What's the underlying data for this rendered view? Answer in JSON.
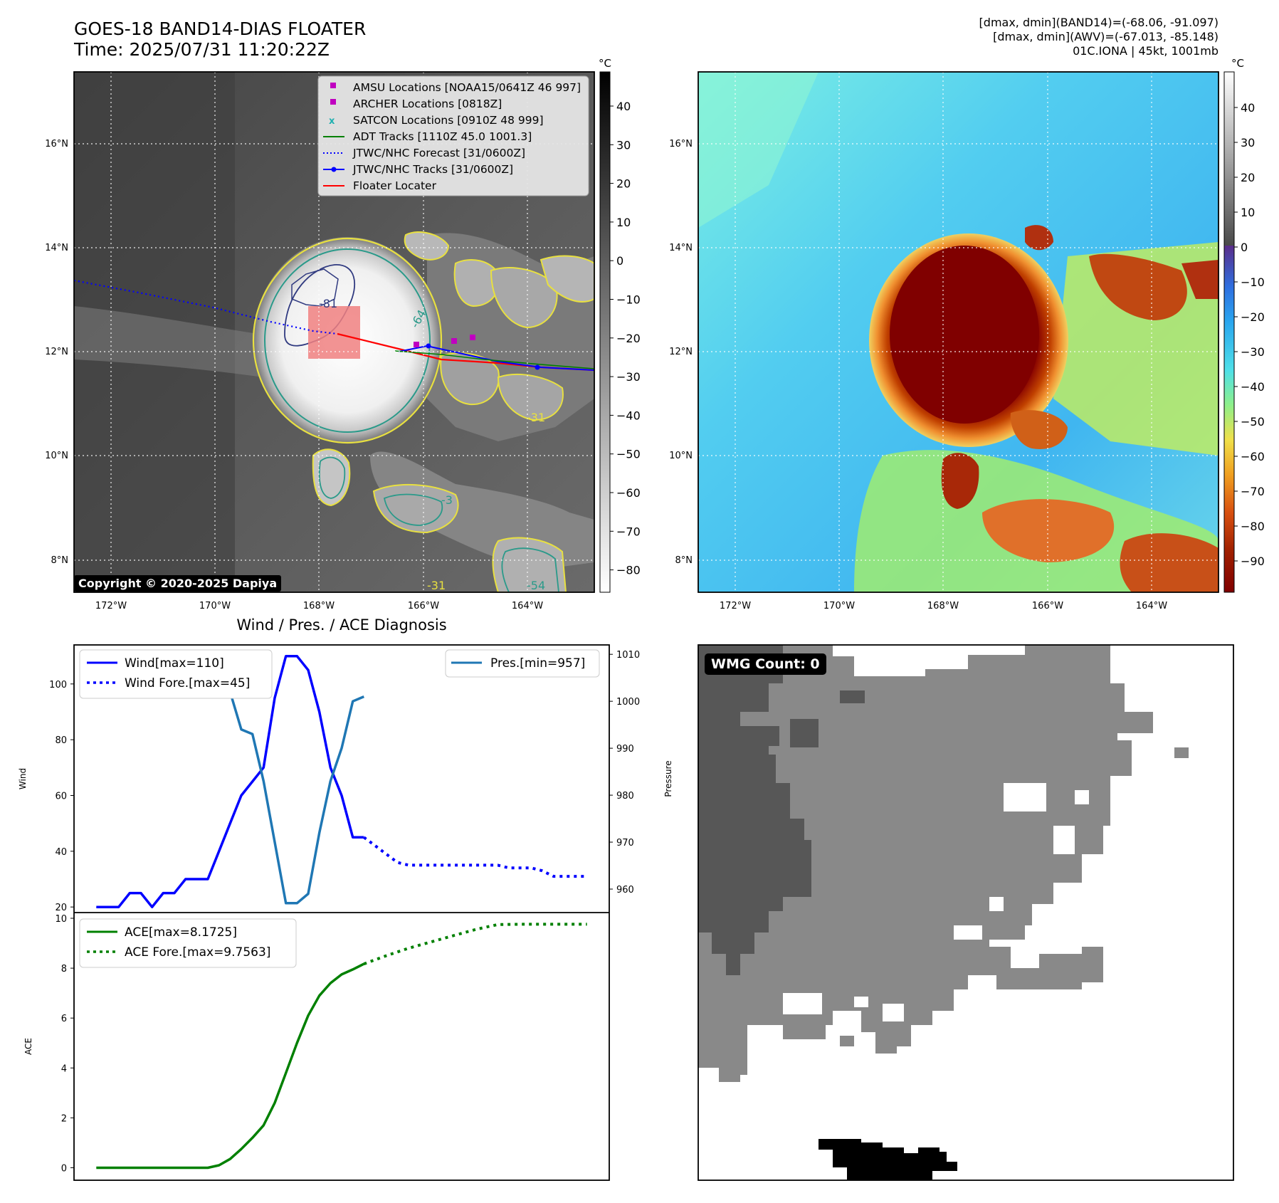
{
  "header": {
    "title_line1": "GOES-18 BAND14-DIAS FLOATER",
    "title_line2": "Time: 2025/07/31 11:20:22Z",
    "info_line1": "[dmax, dmin](BAND14)=(-68.06, -91.097)",
    "info_line2": "[dmax, dmin](AWV)=(-67.013, -85.148)",
    "info_line3": "01C.IONA | 45kt, 1001mb"
  },
  "map": {
    "lat_labels": [
      "16°N",
      "14°N",
      "12°N",
      "10°N",
      "8°N"
    ],
    "lon_labels": [
      "172°W",
      "170°W",
      "168°W",
      "166°W",
      "164°W"
    ],
    "copyright": "Copyright © 2020-2025 Dapiya",
    "legend": [
      {
        "label": "AMSU Locations [NOAA15/0641Z 46 997]",
        "color": "#c000c0",
        "marker": "square"
      },
      {
        "label": "ARCHER Locations [0818Z]",
        "color": "#c000c0",
        "marker": "square"
      },
      {
        "label": "SATCON Locations [0910Z 48 999]",
        "color": "#20b0b0",
        "marker": "x"
      },
      {
        "label": "ADT Tracks [1110Z 45.0 1001.3]",
        "color": "#008000",
        "marker": "line"
      },
      {
        "label": "JTWC/NHC Forecast [31/0600Z]",
        "color": "#0000ff",
        "marker": "dotted"
      },
      {
        "label": "JTWC/NHC Tracks [31/0600Z]",
        "color": "#0000ff",
        "marker": "line-dot"
      },
      {
        "label": "Floater Locater",
        "color": "#ff0000",
        "marker": "line"
      }
    ],
    "contour_labels": [
      "-81",
      "-64",
      "-31",
      "-54",
      "-31",
      "-3"
    ],
    "colorbar_gray": {
      "unit": "°C",
      "ticks": [
        "40",
        "30",
        "20",
        "10",
        "0",
        "−10",
        "−20",
        "−30",
        "−40",
        "−50",
        "−60",
        "−70",
        "−80"
      ]
    },
    "colorbar_color": {
      "unit": "°C",
      "ticks": [
        "40",
        "30",
        "20",
        "10",
        "0",
        "−10",
        "−20",
        "−30",
        "−40",
        "−50",
        "−60",
        "−70",
        "−80",
        "−90"
      ]
    }
  },
  "chart_data": [
    {
      "type": "line",
      "title": "Wind / Pres. / ACE Diagnosis",
      "ylabel": "Wind",
      "ylabel_right": "Pressure",
      "ylim": [
        18,
        114
      ],
      "ylim_right": [
        955,
        1012
      ],
      "yticks": [
        20,
        40,
        60,
        80,
        100
      ],
      "yticks_right": [
        960,
        970,
        980,
        990,
        1000,
        1010
      ],
      "grid": false,
      "series": [
        {
          "name": "Wind[max=110]",
          "style": "solid",
          "color": "#0000ff",
          "x": [
            0,
            1,
            2,
            3,
            4,
            5,
            6,
            7,
            8,
            9,
            10,
            11,
            12,
            13,
            14,
            15,
            16,
            17,
            18,
            19,
            20,
            21,
            22,
            23,
            24,
            25,
            26
          ],
          "values": [
            20,
            20,
            20,
            25,
            25,
            20,
            25,
            25,
            30,
            30,
            30,
            40,
            50,
            60,
            65,
            70,
            95,
            110,
            110,
            105,
            90,
            70,
            60,
            45,
            45,
            null,
            null
          ]
        },
        {
          "name": "Wind Fore.[max=45]",
          "style": "dotted",
          "color": "#0000ff",
          "x": [
            24,
            25,
            26,
            27,
            28,
            29,
            30,
            31,
            32,
            33,
            34,
            35,
            36,
            37,
            38,
            39,
            40,
            41,
            42,
            43,
            44
          ],
          "values": [
            45,
            42,
            39,
            36,
            35,
            35,
            35,
            35,
            35,
            35,
            35,
            35,
            35,
            34,
            34,
            34,
            33,
            31,
            31,
            31,
            31
          ]
        },
        {
          "name": "Pres.[min=957]",
          "style": "solid",
          "color": "#1f77b4",
          "axis": "right",
          "x": [
            0,
            1,
            2,
            3,
            4,
            5,
            6,
            7,
            8,
            9,
            10,
            11,
            12,
            13,
            14,
            15,
            16,
            17,
            18,
            19,
            20,
            21,
            22,
            23,
            24,
            25
          ],
          "values": [
            1010,
            1010,
            1009,
            1008,
            1008,
            1010,
            1009,
            1008,
            1009,
            1008,
            1008,
            1005,
            1002,
            994,
            993,
            983,
            970,
            957,
            957,
            959,
            972,
            983,
            990,
            1000,
            1001,
            null
          ]
        }
      ]
    },
    {
      "type": "line",
      "ylabel": "ACE",
      "ylim": [
        -0.5,
        10.2
      ],
      "yticks": [
        0,
        2,
        4,
        6,
        8,
        10
      ],
      "grid": false,
      "series": [
        {
          "name": "ACE[max=8.1725]",
          "style": "solid",
          "color": "#008000",
          "x": [
            0,
            2,
            4,
            6,
            8,
            10,
            11,
            12,
            13,
            14,
            15,
            16,
            17,
            18,
            19,
            20,
            21,
            22,
            23,
            24
          ],
          "values": [
            0,
            0,
            0,
            0,
            0,
            0,
            0.1,
            0.35,
            0.75,
            1.2,
            1.7,
            2.6,
            3.8,
            5,
            6.1,
            6.9,
            7.4,
            7.75,
            7.95,
            8.17
          ]
        },
        {
          "name": "ACE Fore.[max=9.7563]",
          "style": "dotted",
          "color": "#008000",
          "x": [
            24,
            26,
            28,
            30,
            32,
            34,
            36,
            38,
            40,
            42,
            44
          ],
          "values": [
            8.17,
            8.5,
            8.8,
            9.05,
            9.3,
            9.55,
            9.75,
            9.76,
            9.76,
            9.76,
            9.76
          ]
        }
      ]
    }
  ],
  "wmg": {
    "label": "WMG Count: 0"
  }
}
